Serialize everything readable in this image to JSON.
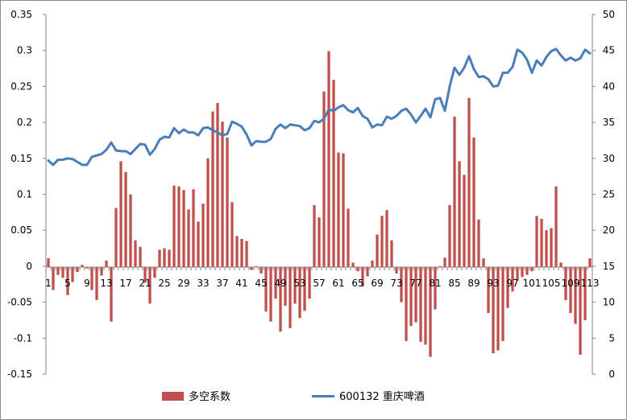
{
  "chart_data": {
    "type": "bar+line",
    "title": "",
    "xlabel": "",
    "ylabel": "",
    "x": [
      1,
      2,
      3,
      4,
      5,
      6,
      7,
      8,
      9,
      10,
      11,
      12,
      13,
      14,
      15,
      16,
      17,
      18,
      19,
      20,
      21,
      22,
      23,
      24,
      25,
      26,
      27,
      28,
      29,
      30,
      31,
      32,
      33,
      34,
      35,
      36,
      37,
      38,
      39,
      40,
      41,
      42,
      43,
      44,
      45,
      46,
      47,
      48,
      49,
      50,
      51,
      52,
      53,
      54,
      55,
      56,
      57,
      58,
      59,
      60,
      61,
      62,
      63,
      64,
      65,
      66,
      67,
      68,
      69,
      70,
      71,
      72,
      73,
      74,
      75,
      76,
      77,
      78,
      79,
      80,
      81,
      82,
      83,
      84,
      85,
      86,
      87,
      88,
      89,
      90,
      91,
      92,
      93,
      94,
      95,
      96,
      97,
      98,
      99,
      100,
      101,
      102,
      103,
      104,
      105,
      106,
      107,
      108,
      109,
      110,
      111,
      112,
      113
    ],
    "x_tick_labels": [
      "1",
      "5",
      "9",
      "13",
      "17",
      "21",
      "25",
      "29",
      "33",
      "37",
      "41",
      "45",
      "49",
      "53",
      "57",
      "61",
      "65",
      "69",
      "73",
      "77",
      "81",
      "85",
      "89",
      "93",
      "97",
      "101",
      "105",
      "109",
      "113"
    ],
    "y_left": {
      "range": [
        -0.15,
        0.35
      ],
      "ticks": [
        "-0.15",
        "-0.1",
        "-0.05",
        "0",
        "0.05",
        "0.1",
        "0.15",
        "0.2",
        "0.25",
        "0.3",
        "0.35"
      ]
    },
    "y_right": {
      "range": [
        0,
        50
      ],
      "ticks": [
        "0",
        "5",
        "10",
        "15",
        "20",
        "25",
        "30",
        "35",
        "40",
        "45",
        "50"
      ]
    },
    "legend": {
      "position": "bottom"
    },
    "series": [
      {
        "name": "多空系数",
        "type": "bar",
        "axis": "left",
        "color": "#c0504d",
        "values": [
          0.011,
          -0.033,
          -0.012,
          -0.016,
          -0.04,
          -0.022,
          -0.008,
          0.002,
          -0.003,
          -0.033,
          -0.047,
          -0.013,
          0.008,
          -0.077,
          0.081,
          0.146,
          0.131,
          0.1,
          0.036,
          0.027,
          -0.023,
          -0.052,
          -0.016,
          0.023,
          0.025,
          0.023,
          0.112,
          0.111,
          0.106,
          0.079,
          0.107,
          0.062,
          0.087,
          0.15,
          0.215,
          0.227,
          0.201,
          0.179,
          0.089,
          0.042,
          0.038,
          0.035,
          -0.005,
          0.0,
          -0.01,
          -0.063,
          -0.077,
          -0.045,
          -0.091,
          -0.055,
          -0.086,
          -0.052,
          -0.072,
          -0.062,
          -0.045,
          0.085,
          0.068,
          0.243,
          0.299,
          0.259,
          0.158,
          0.157,
          0.08,
          0.005,
          -0.007,
          -0.028,
          -0.014,
          0.008,
          0.044,
          0.07,
          0.078,
          0.036,
          -0.01,
          -0.05,
          -0.104,
          -0.083,
          -0.078,
          -0.105,
          -0.109,
          -0.126,
          -0.06,
          0.0,
          0.012,
          0.085,
          0.208,
          0.146,
          0.127,
          0.234,
          0.179,
          0.065,
          0.011,
          -0.065,
          -0.121,
          -0.117,
          -0.104,
          -0.058,
          -0.035,
          -0.02,
          -0.015,
          -0.012,
          -0.007,
          0.07,
          0.066,
          0.05,
          0.053,
          0.111,
          0.005,
          -0.047,
          -0.065,
          -0.08,
          -0.123,
          -0.075,
          0.011
        ]
      },
      {
        "name": "600132 重庆啤酒",
        "type": "line",
        "axis": "right",
        "color": "#4a7ebb",
        "values": [
          29.7,
          29.1,
          29.8,
          29.8,
          30.0,
          29.9,
          29.5,
          29.1,
          29.1,
          30.2,
          30.4,
          30.6,
          31.2,
          32.2,
          31.1,
          31.0,
          31.0,
          30.6,
          31.3,
          32.0,
          31.9,
          30.5,
          31.3,
          32.6,
          33.0,
          32.9,
          34.2,
          33.5,
          34.0,
          33.6,
          33.6,
          33.2,
          34.2,
          34.3,
          33.9,
          33.6,
          33.2,
          33.4,
          35.1,
          34.8,
          34.4,
          33.3,
          31.8,
          32.4,
          32.3,
          32.3,
          32.7,
          34.1,
          34.7,
          34.2,
          34.7,
          34.6,
          34.5,
          33.9,
          34.2,
          35.2,
          35.0,
          35.5,
          36.8,
          36.6,
          37.1,
          37.4,
          36.7,
          36.4,
          37.0,
          35.9,
          35.5,
          34.3,
          34.7,
          34.6,
          35.8,
          35.5,
          35.9,
          36.6,
          36.9,
          36.1,
          35.0,
          35.9,
          36.9,
          35.7,
          38.2,
          38.4,
          36.6,
          40.0,
          42.6,
          41.6,
          42.6,
          44.2,
          42.4,
          41.3,
          41.4,
          41.0,
          40.0,
          40.1,
          41.9,
          41.9,
          42.7,
          45.1,
          44.7,
          43.7,
          41.9,
          43.6,
          42.9,
          44.1,
          44.9,
          45.2,
          44.3,
          43.6,
          44.0,
          43.6,
          43.9,
          45.1,
          44.6
        ]
      }
    ]
  }
}
